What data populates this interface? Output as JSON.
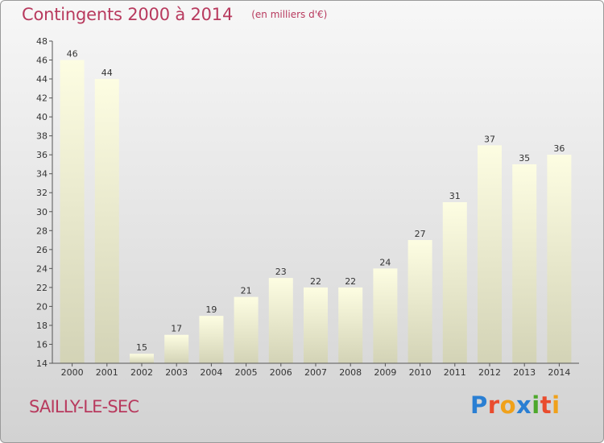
{
  "header": {
    "title": "Contingents 2000 à 2014",
    "subtitle": "(en milliers d'€)"
  },
  "footer": {
    "commune": "SAILLY-LE-SEC",
    "logo_text": "Proxiti"
  },
  "colors": {
    "title": "#b83a5e",
    "bar_top": "#fdfde2",
    "bar_bottom": "#d3d3b6",
    "axis": "#555555"
  },
  "chart_data": {
    "type": "bar",
    "title": "Contingents 2000 à 2014",
    "subtitle": "(en milliers d'€)",
    "xlabel": "",
    "ylabel": "",
    "categories": [
      "2000",
      "2001",
      "2002",
      "2003",
      "2004",
      "2005",
      "2006",
      "2007",
      "2008",
      "2009",
      "2010",
      "2011",
      "2012",
      "2013",
      "2014"
    ],
    "values": [
      46,
      44,
      15,
      17,
      19,
      21,
      23,
      22,
      22,
      24,
      27,
      31,
      37,
      35,
      36
    ],
    "data_labels": [
      "46",
      "44",
      "15",
      "17",
      "19",
      "21",
      "23",
      "22",
      "22",
      "24",
      "27",
      "31",
      "37",
      "35",
      "36"
    ],
    "ylim": [
      14,
      48
    ],
    "yticks": [
      14,
      16,
      18,
      20,
      22,
      24,
      26,
      28,
      30,
      32,
      34,
      36,
      38,
      40,
      42,
      44,
      46,
      48
    ],
    "grid": false,
    "legend": "none"
  }
}
